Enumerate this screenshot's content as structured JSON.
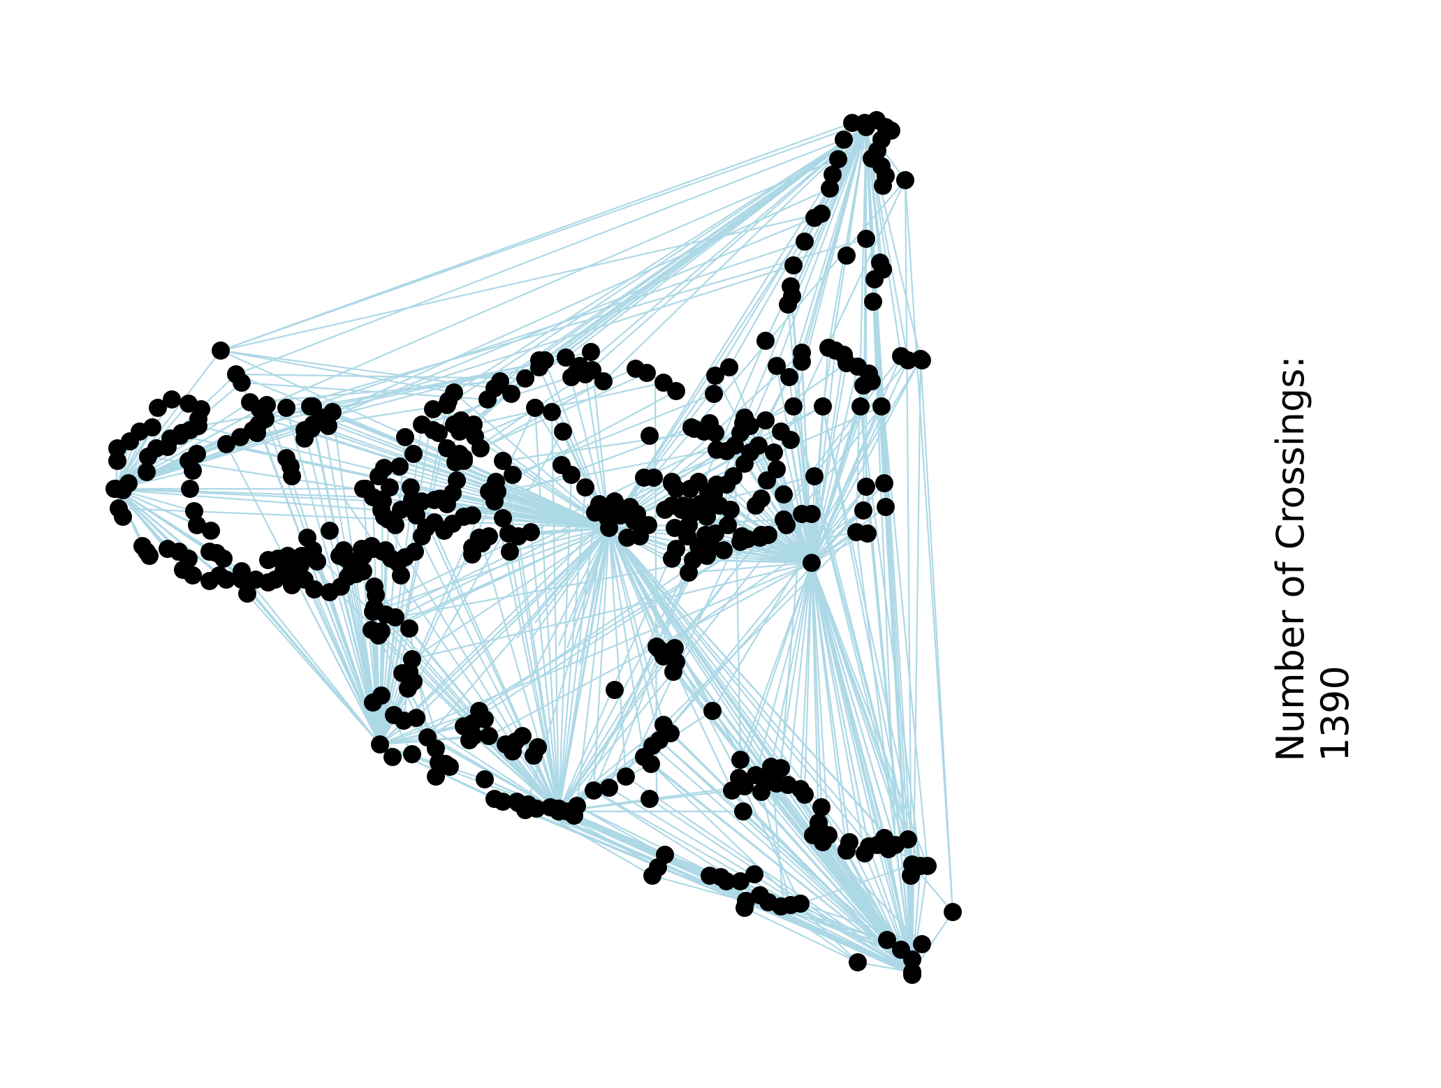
{
  "caption": {
    "label": "Number of Crossings:",
    "value": "1390"
  },
  "colors": {
    "edge": "#add8e6",
    "node": "#000000",
    "background": "#ffffff"
  }
}
